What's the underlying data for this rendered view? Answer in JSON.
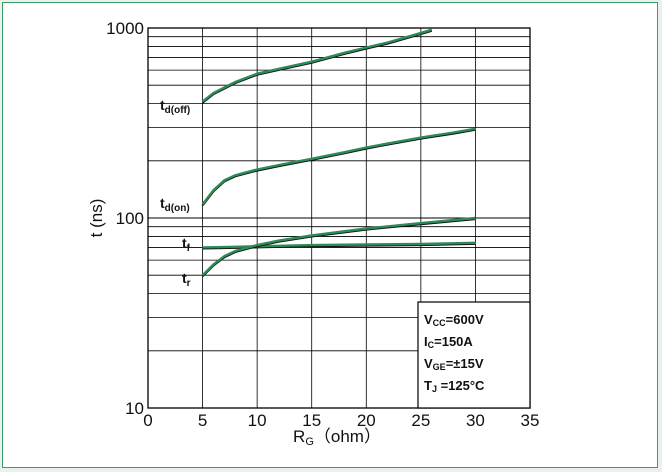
{
  "chart_data": {
    "type": "line",
    "xlabel": {
      "main": "R",
      "sub": "G",
      "rest": "（ohm）"
    },
    "ylabel": "t  (ns)",
    "xlim": [
      0,
      35
    ],
    "ylim": [
      10,
      1000
    ],
    "yscale": "log",
    "grid": true,
    "xticks": [
      0,
      5,
      10,
      15,
      20,
      25,
      30,
      35
    ],
    "yticks": [
      10,
      100,
      1000
    ],
    "ytick_labels": [
      "10",
      "100",
      "1000"
    ],
    "series": [
      {
        "name": "t_d(off)",
        "label_main": "t",
        "label_sub": "d(off)",
        "color": "#2e8b57",
        "points": [
          [
            5,
            410
          ],
          [
            6,
            455
          ],
          [
            8,
            520
          ],
          [
            10,
            575
          ],
          [
            12,
            610
          ],
          [
            15,
            665
          ],
          [
            18,
            740
          ],
          [
            20,
            790
          ],
          [
            22,
            840
          ],
          [
            24,
            905
          ],
          [
            26,
            980
          ]
        ]
      },
      {
        "name": "t_d(on)",
        "label_main": "t",
        "label_sub": "d(on)",
        "color": "#2e8b57",
        "points": [
          [
            5,
            118
          ],
          [
            6,
            140
          ],
          [
            7,
            158
          ],
          [
            8,
            168
          ],
          [
            10,
            180
          ],
          [
            12,
            190
          ],
          [
            15,
            205
          ],
          [
            18,
            222
          ],
          [
            20,
            235
          ],
          [
            22,
            247
          ],
          [
            25,
            265
          ],
          [
            28,
            282
          ],
          [
            30,
            295
          ]
        ]
      },
      {
        "name": "t_f",
        "label_main": "t",
        "label_sub": "f",
        "color": "#2e8b57",
        "points": [
          [
            5,
            70
          ],
          [
            8,
            70.5
          ],
          [
            10,
            71
          ],
          [
            15,
            72
          ],
          [
            20,
            72.5
          ],
          [
            25,
            73
          ],
          [
            30,
            74
          ]
        ]
      },
      {
        "name": "t_r",
        "label_main": "t",
        "label_sub": "r",
        "color": "#2e8b57",
        "points": [
          [
            5,
            50
          ],
          [
            6,
            57
          ],
          [
            7,
            63
          ],
          [
            8,
            67
          ],
          [
            10,
            72
          ],
          [
            12,
            76
          ],
          [
            15,
            81
          ],
          [
            20,
            88
          ],
          [
            25,
            94
          ],
          [
            30,
            100
          ]
        ]
      }
    ],
    "legend": {
      "placement": "bottom-right",
      "lines": [
        {
          "main": "V",
          "sub": "CC",
          "rest": "=600V"
        },
        {
          "main": "I",
          "sub": "C",
          "rest": "=150A"
        },
        {
          "main": "V",
          "sub": "GE",
          "rest": "=±15V"
        },
        {
          "main": "T",
          "sub": "J",
          "rest": " =125°C"
        }
      ]
    },
    "colors": {
      "curve": "#2e8b57",
      "curve_shadow": "#111111",
      "grid": "#000000",
      "frame": "#3a9a6a",
      "background": "#e8f2ea"
    }
  }
}
